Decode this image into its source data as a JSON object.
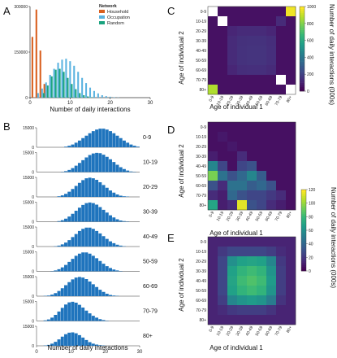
{
  "panels": {
    "A": "A",
    "B": "B",
    "C": "C",
    "D": "D",
    "E": "E"
  },
  "colors": {
    "household": "#d95f1e",
    "occupation": "#5bb3e0",
    "random": "#1aa37f",
    "histB": "#1f74bd",
    "text": "#111111"
  },
  "chart_data": [
    {
      "id": "A",
      "type": "bar",
      "xlabel": "Number of daily interactions",
      "ylabel": "",
      "xlim": [
        0,
        30
      ],
      "ylim": [
        0,
        300000
      ],
      "xticks": [
        "0",
        "10",
        "20",
        "30"
      ],
      "yticks": [
        "0",
        "150000",
        "300000"
      ],
      "legend_title": "Network",
      "legend_position": "top-right",
      "series": [
        {
          "name": "Household",
          "color": "#d95f1e",
          "x": [
            1,
            2,
            3,
            4
          ],
          "values": [
            200000,
            290000,
            155000,
            45000
          ]
        },
        {
          "name": "Occupation",
          "color": "#5bb3e0",
          "x": [
            2,
            3,
            4,
            5,
            6,
            7,
            8,
            9,
            10,
            11,
            12,
            13,
            14,
            15,
            16,
            17,
            18,
            19,
            20,
            21,
            22
          ],
          "values": [
            15000,
            30000,
            50000,
            75000,
            95000,
            115000,
            125000,
            128000,
            120000,
            105000,
            85000,
            65000,
            48000,
            33000,
            22000,
            14000,
            8000,
            5000,
            3000,
            1500,
            800
          ]
        },
        {
          "name": "Random",
          "color": "#1aa37f",
          "x": [
            3,
            4,
            5,
            6,
            7,
            8,
            9,
            10,
            11,
            12,
            13,
            14,
            15
          ],
          "values": [
            15000,
            40000,
            70000,
            92000,
            95000,
            85000,
            65000,
            45000,
            28000,
            15000,
            8000,
            4000,
            1500
          ]
        }
      ]
    },
    {
      "id": "B",
      "type": "bar",
      "xlabel": "Number of daily interactions",
      "xlim": [
        0,
        30
      ],
      "xticks": [
        "0",
        "10",
        "20",
        "30"
      ],
      "ytick_label": "15000",
      "groups": [
        {
          "label": "0-9",
          "values": [
            0,
            0,
            0,
            0,
            0,
            0,
            0,
            0,
            2,
            5,
            9,
            15,
            22,
            30,
            38,
            46,
            53,
            58,
            61,
            61,
            58,
            53,
            46,
            38,
            30,
            22,
            15,
            9,
            5,
            2
          ]
        },
        {
          "label": "10-19",
          "values": [
            0,
            0,
            0,
            0,
            0,
            0,
            0,
            1,
            3,
            7,
            13,
            21,
            30,
            39,
            48,
            56,
            61,
            63,
            62,
            57,
            50,
            42,
            33,
            24,
            16,
            10,
            5,
            2,
            1,
            0
          ]
        },
        {
          "label": "20-29",
          "values": [
            0,
            0,
            0,
            0,
            0,
            0,
            2,
            5,
            10,
            17,
            26,
            36,
            46,
            55,
            61,
            63,
            61,
            56,
            48,
            39,
            30,
            21,
            14,
            8,
            4,
            2,
            1,
            0,
            0,
            0
          ]
        },
        {
          "label": "30-39",
          "values": [
            0,
            0,
            0,
            0,
            0,
            0,
            2,
            5,
            10,
            17,
            26,
            36,
            46,
            55,
            61,
            63,
            61,
            56,
            48,
            39,
            30,
            21,
            14,
            8,
            4,
            2,
            1,
            0,
            0,
            0
          ]
        },
        {
          "label": "40-49",
          "values": [
            0,
            0,
            0,
            0,
            0,
            1,
            3,
            7,
            13,
            21,
            31,
            41,
            51,
            58,
            62,
            62,
            58,
            51,
            43,
            34,
            25,
            17,
            11,
            6,
            3,
            1,
            0,
            0,
            0,
            0
          ]
        },
        {
          "label": "50-59",
          "values": [
            0,
            0,
            0,
            0,
            1,
            3,
            7,
            13,
            21,
            31,
            41,
            51,
            58,
            62,
            62,
            58,
            51,
            43,
            34,
            25,
            17,
            11,
            6,
            3,
            1,
            0,
            0,
            0,
            0,
            0
          ]
        },
        {
          "label": "60-69",
          "values": [
            0,
            0,
            1,
            2,
            5,
            10,
            17,
            26,
            36,
            46,
            55,
            61,
            63,
            61,
            56,
            48,
            39,
            30,
            21,
            14,
            8,
            4,
            2,
            1,
            0,
            0,
            0,
            0,
            0,
            0
          ]
        },
        {
          "label": "70-79",
          "values": [
            0,
            0,
            2,
            5,
            11,
            20,
            31,
            43,
            54,
            61,
            63,
            60,
            53,
            44,
            34,
            25,
            17,
            11,
            6,
            3,
            1,
            0,
            0,
            0,
            0,
            0,
            0,
            0,
            0,
            0
          ]
        },
        {
          "label": "80+",
          "values": [
            0,
            0,
            1,
            3,
            7,
            13,
            21,
            30,
            38,
            43,
            44,
            41,
            35,
            27,
            19,
            12,
            7,
            4,
            2,
            1,
            0,
            0,
            0,
            0,
            0,
            0,
            0,
            0,
            0,
            0
          ]
        }
      ]
    },
    {
      "id": "C",
      "type": "heatmap",
      "xlabel": "Age of individual 1",
      "ylabel": "Age of individual 2",
      "categories": [
        "0-9",
        "10-19",
        "20-29",
        "30-39",
        "40-49",
        "50-59",
        "60-69",
        "70-79",
        "80+"
      ],
      "colorbar": {
        "label": "Number of daily interactions (000s)",
        "ticks": [
          "0",
          "200",
          "400",
          "600",
          "800",
          "1000"
        ],
        "range": [
          0,
          1000
        ]
      },
      "values": [
        [
          null,
          45,
          45,
          45,
          45,
          45,
          45,
          45,
          980
        ],
        [
          45,
          null,
          45,
          45,
          45,
          45,
          45,
          120,
          45
        ],
        [
          45,
          45,
          105,
          120,
          120,
          120,
          105,
          45,
          45
        ],
        [
          45,
          45,
          120,
          140,
          145,
          145,
          130,
          45,
          45
        ],
        [
          45,
          45,
          120,
          145,
          150,
          150,
          135,
          45,
          45
        ],
        [
          45,
          45,
          120,
          145,
          150,
          150,
          135,
          45,
          45
        ],
        [
          45,
          45,
          105,
          130,
          135,
          135,
          120,
          45,
          45
        ],
        [
          45,
          45,
          45,
          45,
          45,
          45,
          45,
          null,
          45
        ],
        [
          880,
          45,
          45,
          45,
          45,
          45,
          45,
          45,
          null
        ]
      ]
    },
    {
      "id": "D",
      "type": "heatmap",
      "xlabel": "Age of individual 1",
      "ylabel": "Age of individual 2",
      "categories": [
        "0-9",
        "10-19",
        "20-29",
        "30-39",
        "40-49",
        "50-59",
        "60-69",
        "70-79",
        "80+"
      ],
      "colorbar": {
        "label": "Number of daily interactions (000s)",
        "ticks": [
          "0",
          "20",
          "40",
          "60",
          "80",
          "100",
          "120"
        ],
        "range": [
          0,
          120
        ]
      },
      "values": [
        [
          5,
          5,
          5,
          5,
          5,
          5,
          5,
          5,
          5
        ],
        [
          5,
          8,
          5,
          5,
          5,
          5,
          5,
          5,
          5
        ],
        [
          5,
          5,
          8,
          5,
          5,
          5,
          5,
          5,
          5
        ],
        [
          10,
          5,
          5,
          15,
          5,
          5,
          5,
          5,
          5
        ],
        [
          55,
          25,
          5,
          25,
          30,
          5,
          5,
          5,
          5
        ],
        [
          95,
          45,
          30,
          40,
          55,
          35,
          5,
          5,
          5
        ],
        [
          30,
          15,
          45,
          45,
          35,
          40,
          30,
          5,
          5
        ],
        [
          15,
          10,
          40,
          30,
          25,
          25,
          20,
          15,
          5
        ],
        [
          70,
          10,
          15,
          115,
          30,
          25,
          15,
          10,
          5
        ]
      ]
    },
    {
      "id": "E",
      "type": "heatmap",
      "xlabel": "Age of individual 1",
      "ylabel": "Age of individual 2",
      "categories": [
        "0-9",
        "10-19",
        "20-29",
        "30-39",
        "40-49",
        "50-59",
        "60-69",
        "70-79",
        "80+"
      ],
      "values": [
        [
          12,
          12,
          12,
          12,
          12,
          12,
          12,
          12,
          12
        ],
        [
          12,
          20,
          25,
          25,
          25,
          25,
          22,
          15,
          12
        ],
        [
          12,
          25,
          60,
          68,
          70,
          68,
          55,
          20,
          12
        ],
        [
          12,
          25,
          68,
          78,
          82,
          78,
          62,
          22,
          12
        ],
        [
          12,
          25,
          70,
          82,
          86,
          82,
          65,
          22,
          12
        ],
        [
          12,
          25,
          68,
          78,
          82,
          78,
          62,
          22,
          12
        ],
        [
          12,
          22,
          55,
          62,
          65,
          62,
          50,
          18,
          12
        ],
        [
          12,
          15,
          20,
          22,
          22,
          22,
          18,
          12,
          12
        ],
        [
          12,
          12,
          12,
          12,
          12,
          12,
          12,
          12,
          12
        ]
      ]
    }
  ]
}
